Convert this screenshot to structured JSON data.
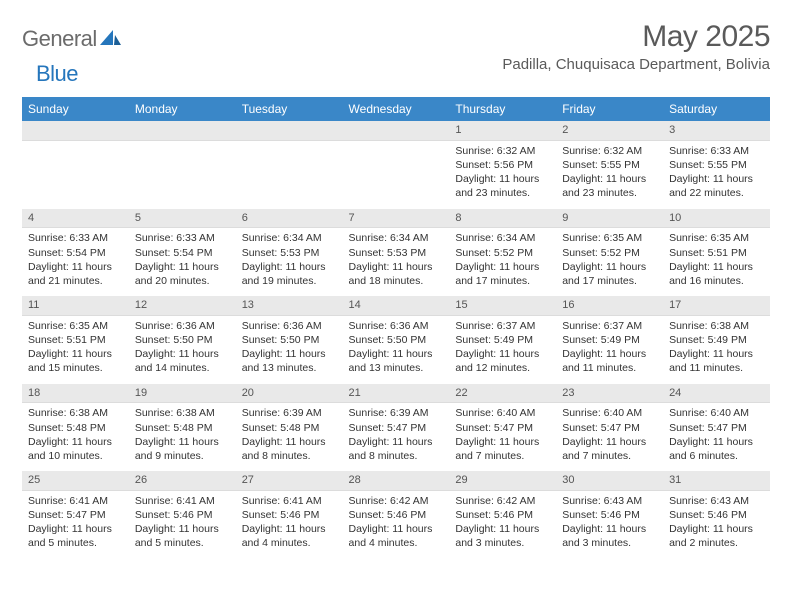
{
  "logo": {
    "text1": "General",
    "text2": "Blue"
  },
  "title": "May 2025",
  "location": "Padilla, Chuquisaca Department, Bolivia",
  "colors": {
    "header_bg": "#3a87c8",
    "header_text": "#ffffff",
    "daynum_bg": "#e9e9e9",
    "body_text": "#333333",
    "title_text": "#5a5a5a",
    "logo_gray": "#6b6b6b",
    "logo_blue": "#2576bc"
  },
  "fonts": {
    "title_pt": 30,
    "location_pt": 15,
    "header_pt": 12,
    "cell_pt": 10.5
  },
  "weekdays": [
    "Sunday",
    "Monday",
    "Tuesday",
    "Wednesday",
    "Thursday",
    "Friday",
    "Saturday"
  ],
  "weeks": [
    [
      null,
      null,
      null,
      null,
      {
        "n": "1",
        "sr": "Sunrise: 6:32 AM",
        "ss": "Sunset: 5:56 PM",
        "d1": "Daylight: 11 hours",
        "d2": "and 23 minutes."
      },
      {
        "n": "2",
        "sr": "Sunrise: 6:32 AM",
        "ss": "Sunset: 5:55 PM",
        "d1": "Daylight: 11 hours",
        "d2": "and 23 minutes."
      },
      {
        "n": "3",
        "sr": "Sunrise: 6:33 AM",
        "ss": "Sunset: 5:55 PM",
        "d1": "Daylight: 11 hours",
        "d2": "and 22 minutes."
      }
    ],
    [
      {
        "n": "4",
        "sr": "Sunrise: 6:33 AM",
        "ss": "Sunset: 5:54 PM",
        "d1": "Daylight: 11 hours",
        "d2": "and 21 minutes."
      },
      {
        "n": "5",
        "sr": "Sunrise: 6:33 AM",
        "ss": "Sunset: 5:54 PM",
        "d1": "Daylight: 11 hours",
        "d2": "and 20 minutes."
      },
      {
        "n": "6",
        "sr": "Sunrise: 6:34 AM",
        "ss": "Sunset: 5:53 PM",
        "d1": "Daylight: 11 hours",
        "d2": "and 19 minutes."
      },
      {
        "n": "7",
        "sr": "Sunrise: 6:34 AM",
        "ss": "Sunset: 5:53 PM",
        "d1": "Daylight: 11 hours",
        "d2": "and 18 minutes."
      },
      {
        "n": "8",
        "sr": "Sunrise: 6:34 AM",
        "ss": "Sunset: 5:52 PM",
        "d1": "Daylight: 11 hours",
        "d2": "and 17 minutes."
      },
      {
        "n": "9",
        "sr": "Sunrise: 6:35 AM",
        "ss": "Sunset: 5:52 PM",
        "d1": "Daylight: 11 hours",
        "d2": "and 17 minutes."
      },
      {
        "n": "10",
        "sr": "Sunrise: 6:35 AM",
        "ss": "Sunset: 5:51 PM",
        "d1": "Daylight: 11 hours",
        "d2": "and 16 minutes."
      }
    ],
    [
      {
        "n": "11",
        "sr": "Sunrise: 6:35 AM",
        "ss": "Sunset: 5:51 PM",
        "d1": "Daylight: 11 hours",
        "d2": "and 15 minutes."
      },
      {
        "n": "12",
        "sr": "Sunrise: 6:36 AM",
        "ss": "Sunset: 5:50 PM",
        "d1": "Daylight: 11 hours",
        "d2": "and 14 minutes."
      },
      {
        "n": "13",
        "sr": "Sunrise: 6:36 AM",
        "ss": "Sunset: 5:50 PM",
        "d1": "Daylight: 11 hours",
        "d2": "and 13 minutes."
      },
      {
        "n": "14",
        "sr": "Sunrise: 6:36 AM",
        "ss": "Sunset: 5:50 PM",
        "d1": "Daylight: 11 hours",
        "d2": "and 13 minutes."
      },
      {
        "n": "15",
        "sr": "Sunrise: 6:37 AM",
        "ss": "Sunset: 5:49 PM",
        "d1": "Daylight: 11 hours",
        "d2": "and 12 minutes."
      },
      {
        "n": "16",
        "sr": "Sunrise: 6:37 AM",
        "ss": "Sunset: 5:49 PM",
        "d1": "Daylight: 11 hours",
        "d2": "and 11 minutes."
      },
      {
        "n": "17",
        "sr": "Sunrise: 6:38 AM",
        "ss": "Sunset: 5:49 PM",
        "d1": "Daylight: 11 hours",
        "d2": "and 11 minutes."
      }
    ],
    [
      {
        "n": "18",
        "sr": "Sunrise: 6:38 AM",
        "ss": "Sunset: 5:48 PM",
        "d1": "Daylight: 11 hours",
        "d2": "and 10 minutes."
      },
      {
        "n": "19",
        "sr": "Sunrise: 6:38 AM",
        "ss": "Sunset: 5:48 PM",
        "d1": "Daylight: 11 hours",
        "d2": "and 9 minutes."
      },
      {
        "n": "20",
        "sr": "Sunrise: 6:39 AM",
        "ss": "Sunset: 5:48 PM",
        "d1": "Daylight: 11 hours",
        "d2": "and 8 minutes."
      },
      {
        "n": "21",
        "sr": "Sunrise: 6:39 AM",
        "ss": "Sunset: 5:47 PM",
        "d1": "Daylight: 11 hours",
        "d2": "and 8 minutes."
      },
      {
        "n": "22",
        "sr": "Sunrise: 6:40 AM",
        "ss": "Sunset: 5:47 PM",
        "d1": "Daylight: 11 hours",
        "d2": "and 7 minutes."
      },
      {
        "n": "23",
        "sr": "Sunrise: 6:40 AM",
        "ss": "Sunset: 5:47 PM",
        "d1": "Daylight: 11 hours",
        "d2": "and 7 minutes."
      },
      {
        "n": "24",
        "sr": "Sunrise: 6:40 AM",
        "ss": "Sunset: 5:47 PM",
        "d1": "Daylight: 11 hours",
        "d2": "and 6 minutes."
      }
    ],
    [
      {
        "n": "25",
        "sr": "Sunrise: 6:41 AM",
        "ss": "Sunset: 5:47 PM",
        "d1": "Daylight: 11 hours",
        "d2": "and 5 minutes."
      },
      {
        "n": "26",
        "sr": "Sunrise: 6:41 AM",
        "ss": "Sunset: 5:46 PM",
        "d1": "Daylight: 11 hours",
        "d2": "and 5 minutes."
      },
      {
        "n": "27",
        "sr": "Sunrise: 6:41 AM",
        "ss": "Sunset: 5:46 PM",
        "d1": "Daylight: 11 hours",
        "d2": "and 4 minutes."
      },
      {
        "n": "28",
        "sr": "Sunrise: 6:42 AM",
        "ss": "Sunset: 5:46 PM",
        "d1": "Daylight: 11 hours",
        "d2": "and 4 minutes."
      },
      {
        "n": "29",
        "sr": "Sunrise: 6:42 AM",
        "ss": "Sunset: 5:46 PM",
        "d1": "Daylight: 11 hours",
        "d2": "and 3 minutes."
      },
      {
        "n": "30",
        "sr": "Sunrise: 6:43 AM",
        "ss": "Sunset: 5:46 PM",
        "d1": "Daylight: 11 hours",
        "d2": "and 3 minutes."
      },
      {
        "n": "31",
        "sr": "Sunrise: 6:43 AM",
        "ss": "Sunset: 5:46 PM",
        "d1": "Daylight: 11 hours",
        "d2": "and 2 minutes."
      }
    ]
  ]
}
